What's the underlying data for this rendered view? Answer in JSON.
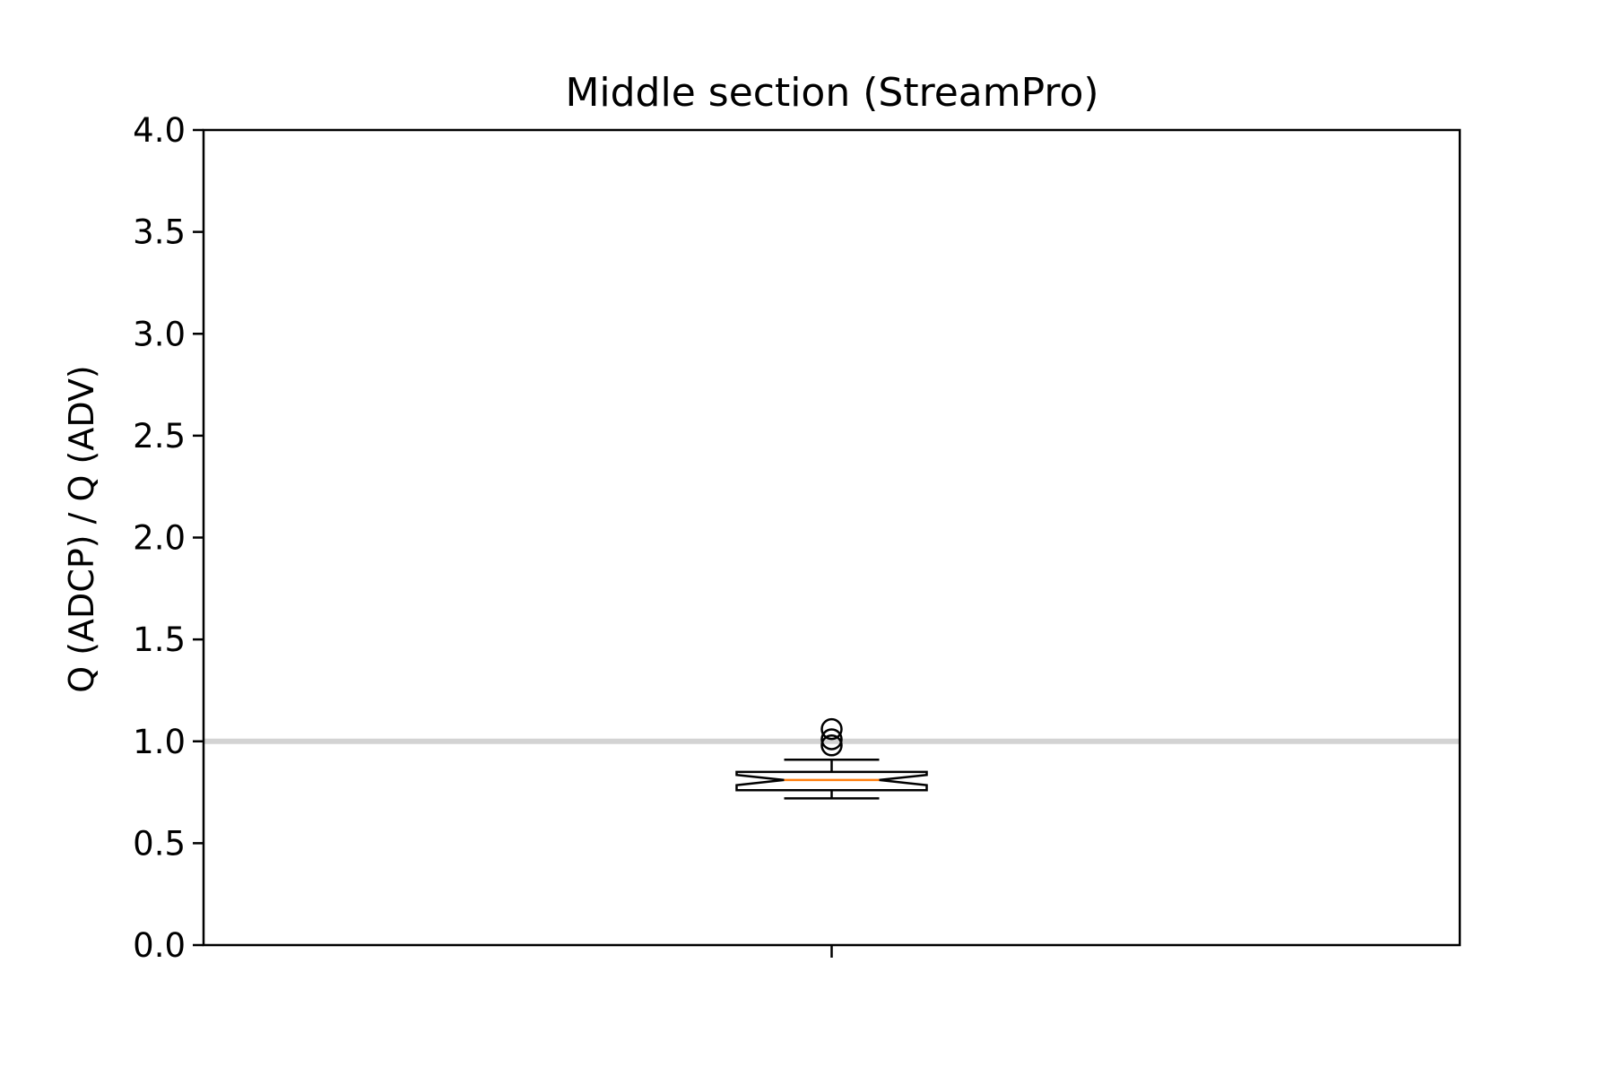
{
  "chart_data": {
    "type": "boxplot",
    "title": "Middle section (StreamPro)",
    "xlabel": "",
    "ylabel": "Q (ADCP) / Q (ADV)",
    "ylim": [
      0.0,
      4.0
    ],
    "yticks": [
      "0.0",
      "0.5",
      "1.0",
      "1.5",
      "2.0",
      "2.5",
      "3.0",
      "3.5",
      "4.0"
    ],
    "xticks": [
      ""
    ],
    "grid": false,
    "notched": true,
    "reference_line": {
      "y": 1.0,
      "color": "#d3d3d3"
    },
    "boxes": [
      {
        "whisker_low": 0.72,
        "q1": 0.76,
        "median": 0.81,
        "q3": 0.85,
        "whisker_high": 0.91,
        "notch_low": 0.785,
        "notch_high": 0.835,
        "outliers": [
          0.98,
          1.01,
          1.06
        ]
      }
    ],
    "colors": {
      "box": "#000000",
      "median": "#ff7f0e"
    }
  }
}
